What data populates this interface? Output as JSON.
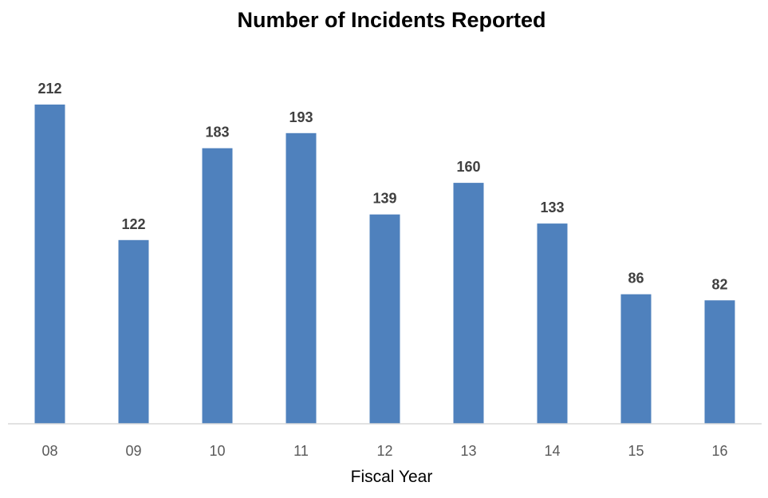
{
  "chart_data": {
    "type": "bar",
    "title": "Number of Incidents Reported",
    "xlabel": "Fiscal Year",
    "ylabel": "",
    "categories": [
      "08",
      "09",
      "10",
      "11",
      "12",
      "13",
      "14",
      "15",
      "16"
    ],
    "values": [
      212,
      122,
      183,
      193,
      139,
      160,
      133,
      86,
      82
    ],
    "data_labels": [
      "212",
      "122",
      "183",
      "193",
      "139",
      "160",
      "133",
      "86",
      "82"
    ],
    "ylim": [
      0,
      212
    ],
    "grid": false,
    "legend": "none",
    "colors": {
      "bar": "#4F81BD",
      "axis": "#D9D9D9",
      "data_label": "#404040",
      "tick_label": "#595959",
      "title": "#000000"
    }
  }
}
